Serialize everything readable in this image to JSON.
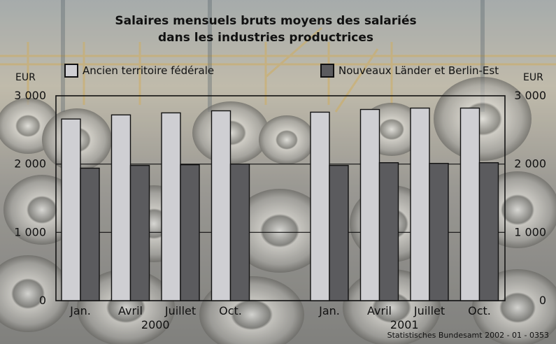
{
  "chart_data": {
    "type": "bar",
    "title": "Salaires mensuels bruts moyens des salariés dans les industries productrices",
    "title_lines": [
      "Salaires mensuels bruts moyens des salariés",
      "dans les industries productrices"
    ],
    "ylabel_left": "EUR",
    "ylabel_right": "EUR",
    "ylim": [
      0,
      3000
    ],
    "yticks": [
      0,
      1000,
      2000,
      3000
    ],
    "ytick_labels": [
      "0",
      "1 000",
      "2 000",
      "3 000"
    ],
    "grid": true,
    "legend_position": "top",
    "groups": [
      {
        "label": "2000",
        "categories": [
          "Jan.",
          "Avril",
          "Juillet",
          "Oct."
        ]
      },
      {
        "label": "2001",
        "categories": [
          "Jan.",
          "Avril",
          "Juillet",
          "Oct."
        ]
      }
    ],
    "categories": [
      "Jan.",
      "Avril",
      "Juillet",
      "Oct.",
      "Jan.",
      "Avril",
      "Juillet",
      "Oct."
    ],
    "series": [
      {
        "name": "Ancien territoire fédérale",
        "color": "#cfcfd3",
        "values": [
          2660,
          2720,
          2750,
          2780,
          2760,
          2800,
          2820,
          2820
        ]
      },
      {
        "name": "Nouveaux Länder et Berlin-Est",
        "color": "#5b5b5e",
        "values": [
          1940,
          1980,
          1990,
          2000,
          1980,
          2020,
          2010,
          2020
        ]
      }
    ],
    "source": "Statistisches Bundesamt 2002 - 01 - 0353"
  }
}
